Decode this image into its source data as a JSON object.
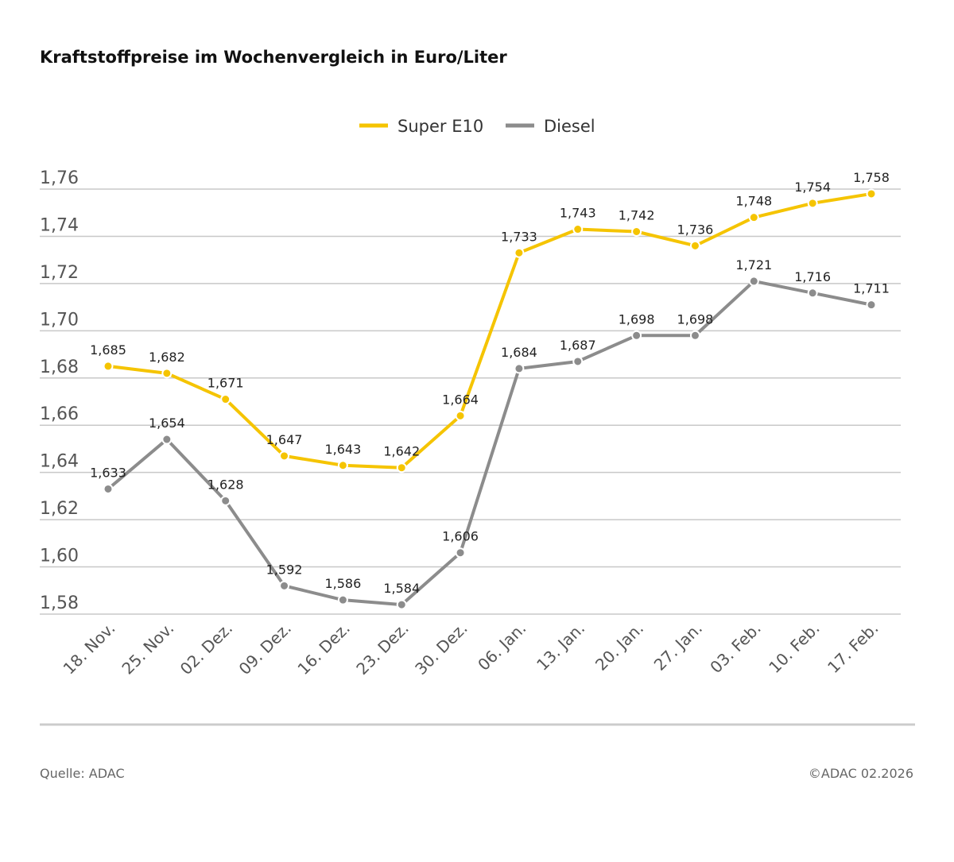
{
  "title": "Kraftstoffpreise im Wochenvergleich in Euro/Liter",
  "footer": {
    "source": "Quelle: ADAC",
    "copyright": "©ADAC 02.2026"
  },
  "chart_data": {
    "type": "line",
    "title": "Kraftstoffpreise im Wochenvergleich in Euro/Liter",
    "xlabel": "",
    "ylabel": "",
    "ylim": [
      1.58,
      1.76
    ],
    "yticks": [
      1.58,
      1.6,
      1.62,
      1.64,
      1.66,
      1.68,
      1.7,
      1.72,
      1.74,
      1.76
    ],
    "legend_position": "top-center",
    "grid": true,
    "categories": [
      "18. Nov.",
      "25. Nov.",
      "02. Dez.",
      "09. Dez.",
      "16. Dez.",
      "23. Dez.",
      "30. Dez.",
      "06. Jan.",
      "13. Jan.",
      "20. Jan.",
      "27. Jan.",
      "03. Feb.",
      "10. Feb.",
      "17. Feb."
    ],
    "series": [
      {
        "name": "Super E10",
        "color": "#f5c400",
        "values": [
          1.685,
          1.682,
          1.671,
          1.647,
          1.643,
          1.642,
          1.664,
          1.733,
          1.743,
          1.742,
          1.736,
          1.748,
          1.754,
          1.758
        ]
      },
      {
        "name": "Diesel",
        "color": "#8c8c8c",
        "values": [
          1.633,
          1.654,
          1.628,
          1.592,
          1.586,
          1.584,
          1.606,
          1.684,
          1.687,
          1.698,
          1.698,
          1.721,
          1.716,
          1.711
        ]
      }
    ]
  }
}
